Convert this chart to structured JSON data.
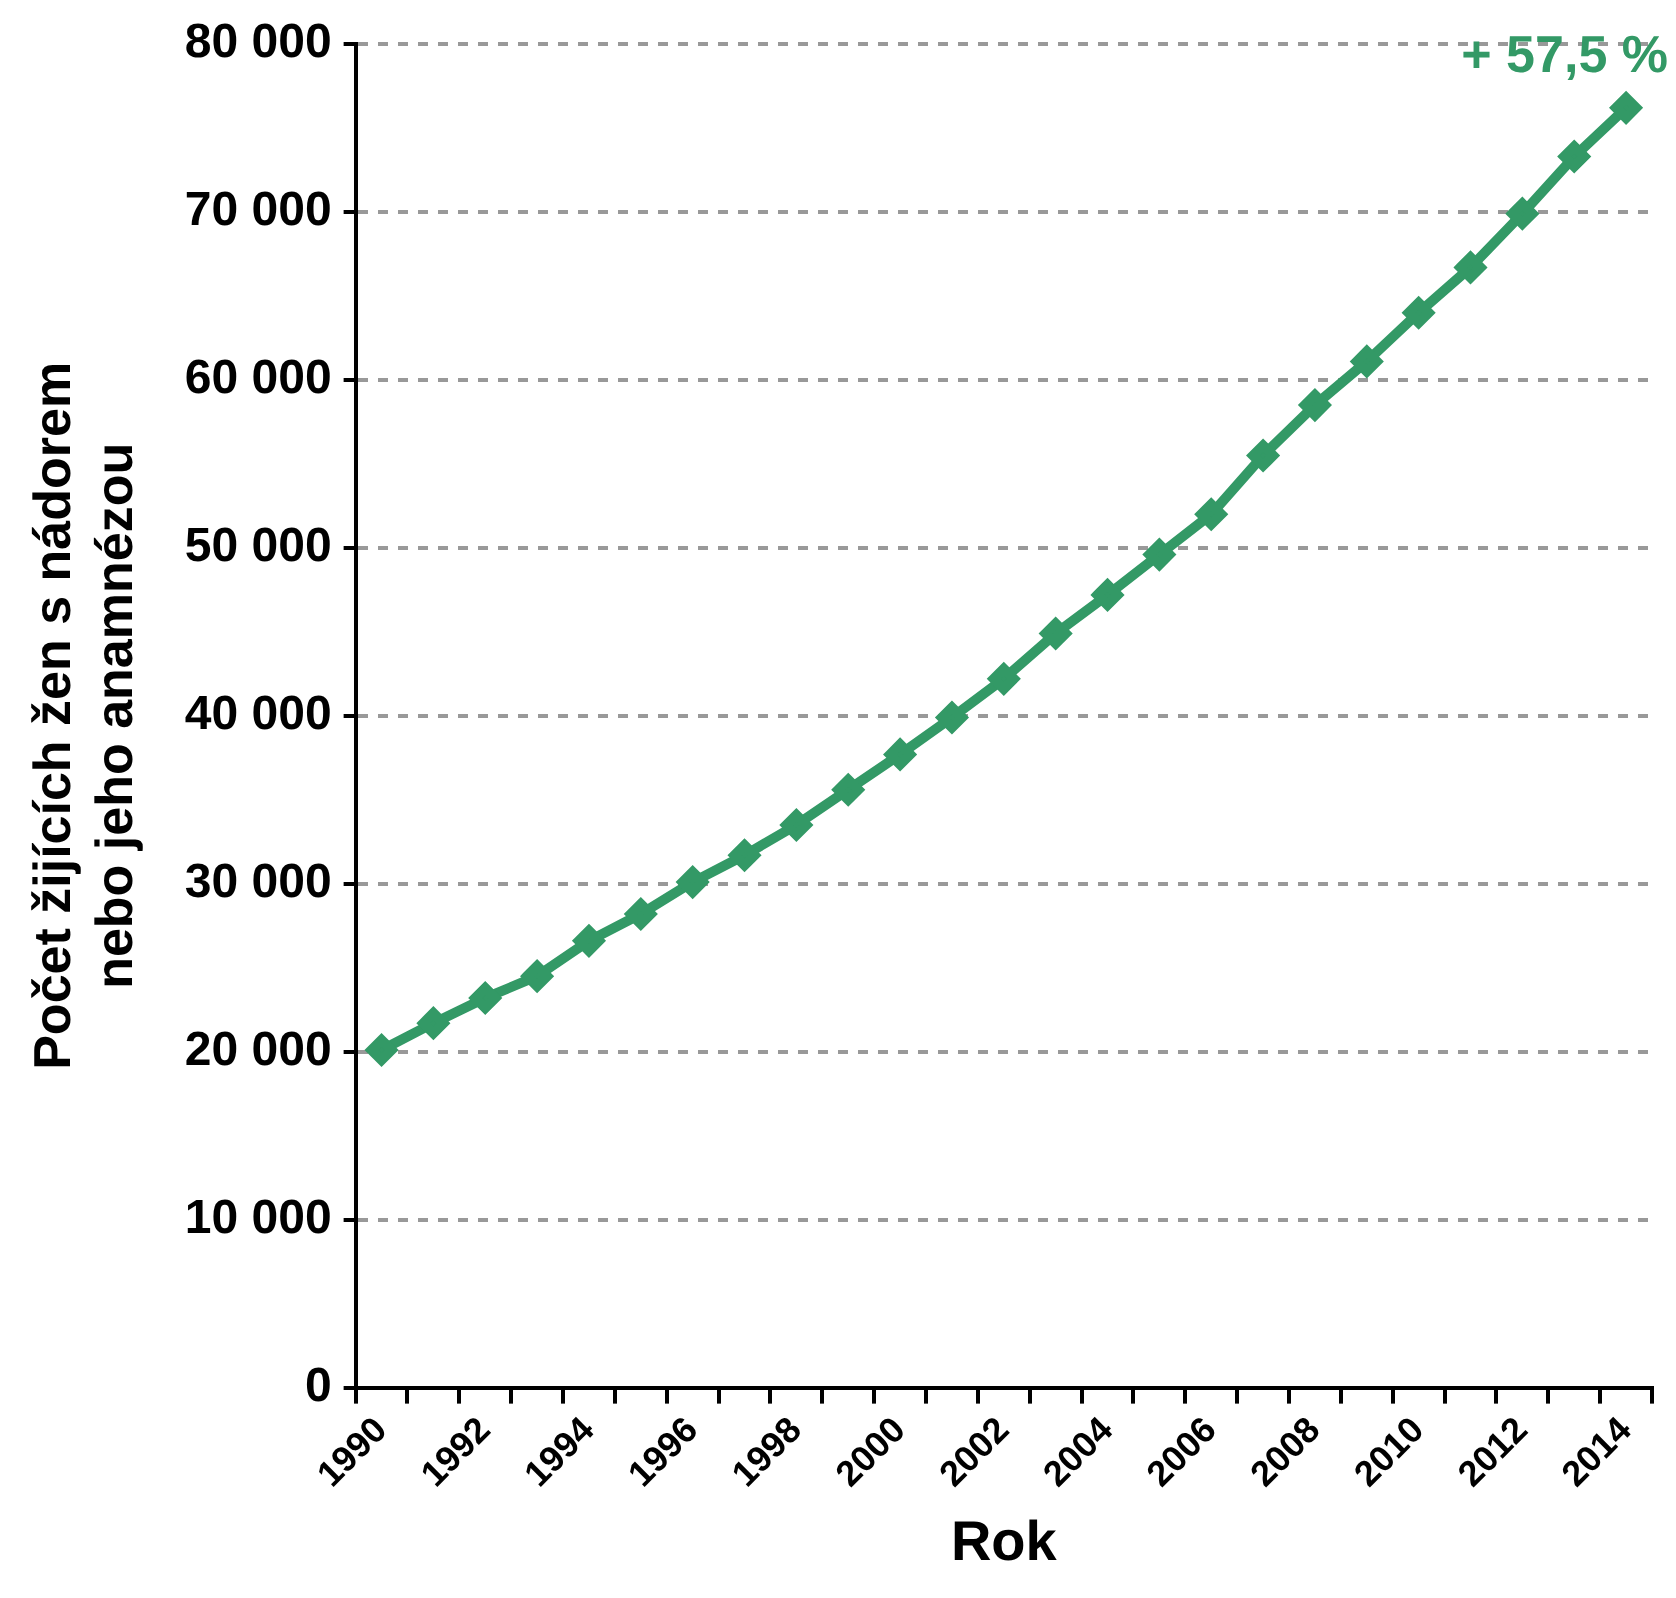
{
  "chart_data": {
    "type": "line",
    "xlabel": "Rok",
    "ylabel": "Počet žijících žen s nádorem\nnebo jeho anamnézou",
    "categories": [
      "1990",
      null,
      "1992",
      null,
      "1994",
      null,
      "1996",
      null,
      "1998",
      null,
      "2000",
      null,
      "2002",
      null,
      "2004",
      null,
      "2006",
      null,
      "2008",
      null,
      "2010",
      null,
      "2012",
      null,
      "2014"
    ],
    "series": [
      {
        "color": "#339966",
        "values": [
          20100,
          21700,
          23200,
          24500,
          26600,
          28200,
          30100,
          31700,
          33500,
          35600,
          37700,
          39900,
          42200,
          44900,
          47200,
          49600,
          52000,
          55500,
          58500,
          61100,
          64000,
          66700,
          69900,
          73300,
          76200
        ]
      }
    ],
    "ylim": [
      0,
      80000
    ],
    "yticks": [
      0,
      {
        "value": 10000,
        "label": "10 000"
      },
      {
        "value": 20000,
        "label": "20 000"
      },
      {
        "value": 30000,
        "label": "30 000"
      },
      {
        "value": 40000,
        "label": "40 000"
      },
      {
        "value": 50000,
        "label": "50 000"
      },
      {
        "value": 60000,
        "label": "60 000"
      },
      {
        "value": 70000,
        "label": "70 000"
      },
      {
        "value": 80000,
        "label": "80 000"
      }
    ],
    "grid": "y",
    "legend": false,
    "marker": "diamond",
    "line_style": "solid",
    "annotations": [
      {
        "text": "+ 57,5 %",
        "x": "2014",
        "y": 76200
      }
    ]
  }
}
